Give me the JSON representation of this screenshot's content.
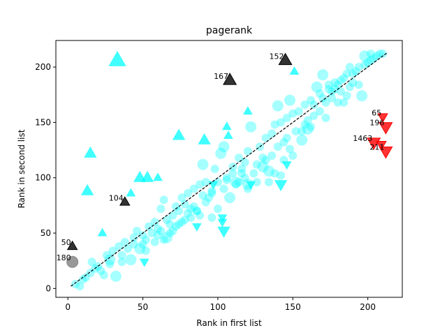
{
  "chart_data": {
    "type": "scatter",
    "title": "pagerank",
    "xlabel": "Rank in first list",
    "ylabel": "Rank in second list",
    "xlim": [
      -8,
      223
    ],
    "ylim": [
      -8,
      224
    ],
    "xticks": [
      0,
      50,
      100,
      150,
      200
    ],
    "yticks": [
      0,
      50,
      100,
      150,
      200
    ],
    "grid": false,
    "reference_line": {
      "from": [
        2,
        2
      ],
      "to": [
        213,
        213
      ],
      "style": "dashed",
      "color": "#000000"
    },
    "colors": {
      "similar": "#00ffff",
      "outlier_high": "#000000",
      "outlier_low": "#ff0000",
      "gray": "#808080"
    },
    "series": [
      {
        "marker": "circle",
        "color": "#00ffff",
        "points": [
          [
            5,
            4,
            1
          ],
          [
            8,
            2,
            1
          ],
          [
            10,
            8,
            1
          ],
          [
            12,
            10,
            1
          ],
          [
            15,
            14,
            1
          ],
          [
            18,
            18,
            1
          ],
          [
            20,
            20,
            1
          ],
          [
            22,
            16,
            1
          ],
          [
            24,
            12,
            1
          ],
          [
            16,
            24,
            1
          ],
          [
            26,
            30,
            1
          ],
          [
            28,
            26,
            2
          ],
          [
            30,
            34,
            1
          ],
          [
            32,
            11,
            2
          ],
          [
            34,
            38,
            1
          ],
          [
            36,
            30,
            1
          ],
          [
            38,
            42,
            1
          ],
          [
            40,
            36,
            1
          ],
          [
            42,
            26,
            2
          ],
          [
            44,
            46,
            1
          ],
          [
            46,
            52,
            1
          ],
          [
            48,
            36,
            2
          ],
          [
            50,
            48,
            1
          ],
          [
            52,
            44,
            1
          ],
          [
            54,
            56,
            1
          ],
          [
            56,
            50,
            1
          ],
          [
            58,
            60,
            1
          ],
          [
            60,
            54,
            1
          ],
          [
            62,
            72,
            1
          ],
          [
            64,
            80,
            1
          ],
          [
            66,
            62,
            1
          ],
          [
            68,
            58,
            1
          ],
          [
            70,
            66,
            1
          ],
          [
            72,
            74,
            1
          ],
          [
            74,
            70,
            1
          ],
          [
            76,
            82,
            1
          ],
          [
            78,
            76,
            1
          ],
          [
            80,
            86,
            1
          ],
          [
            82,
            64,
            1
          ],
          [
            84,
            90,
            1
          ],
          [
            86,
            70,
            1
          ],
          [
            88,
            94,
            1
          ],
          [
            90,
            112,
            2
          ],
          [
            92,
            78,
            1
          ],
          [
            94,
            82,
            1
          ],
          [
            96,
            86,
            1
          ],
          [
            98,
            108,
            1
          ],
          [
            100,
            96,
            1
          ],
          [
            102,
            122,
            2
          ],
          [
            104,
            128,
            2
          ],
          [
            106,
            100,
            1
          ],
          [
            108,
            82,
            2
          ],
          [
            110,
            104,
            1
          ],
          [
            112,
            96,
            2
          ],
          [
            114,
            118,
            1
          ],
          [
            116,
            108,
            1
          ],
          [
            118,
            114,
            1
          ],
          [
            120,
            124,
            1
          ],
          [
            122,
            146,
            2
          ],
          [
            124,
            104,
            1
          ],
          [
            126,
            112,
            1
          ],
          [
            128,
            128,
            1
          ],
          [
            130,
            110,
            2
          ],
          [
            132,
            136,
            1
          ],
          [
            134,
            106,
            2
          ],
          [
            136,
            140,
            1
          ],
          [
            138,
            148,
            1
          ],
          [
            140,
            165,
            2
          ],
          [
            142,
            150,
            1
          ],
          [
            144,
            132,
            1
          ],
          [
            146,
            154,
            1
          ],
          [
            148,
            170,
            2
          ],
          [
            150,
            158,
            1
          ],
          [
            152,
            142,
            1
          ],
          [
            154,
            160,
            1
          ],
          [
            156,
            134,
            2
          ],
          [
            158,
            166,
            1
          ],
          [
            160,
            144,
            2
          ],
          [
            162,
            170,
            1
          ],
          [
            164,
            156,
            1
          ],
          [
            166,
            182,
            2
          ],
          [
            168,
            176,
            1
          ],
          [
            170,
            193,
            2
          ],
          [
            172,
            168,
            1
          ],
          [
            174,
            180,
            1
          ],
          [
            176,
            172,
            1
          ],
          [
            178,
            186,
            1
          ],
          [
            180,
            168,
            1
          ],
          [
            182,
            178,
            1
          ],
          [
            184,
            190,
            1
          ],
          [
            186,
            174,
            1
          ],
          [
            188,
            182,
            1
          ],
          [
            190,
            186,
            1
          ],
          [
            192,
            196,
            1
          ],
          [
            194,
            200,
            1
          ],
          [
            196,
            174,
            2
          ],
          [
            198,
            210,
            2
          ],
          [
            200,
            204,
            1
          ],
          [
            202,
            206,
            1
          ],
          [
            204,
            208,
            1
          ],
          [
            206,
            210,
            1
          ],
          [
            208,
            212,
            1
          ],
          [
            210,
            212,
            1
          ],
          [
            66,
            46,
            2
          ],
          [
            64,
            44,
            1
          ],
          [
            96,
            88,
            1
          ],
          [
            92,
            96,
            1
          ],
          [
            86,
            70,
            1
          ],
          [
            88,
            66,
            1
          ],
          [
            100,
            72,
            1
          ],
          [
            104,
            90,
            1
          ],
          [
            96,
            64,
            1
          ],
          [
            80,
            68,
            1
          ],
          [
            78,
            62,
            1
          ],
          [
            74,
            58,
            1
          ],
          [
            52,
            34,
            1
          ],
          [
            50,
            40,
            1
          ],
          [
            44,
            40,
            1
          ],
          [
            36,
            24,
            1
          ],
          [
            28,
            22,
            1
          ],
          [
            118,
            100,
            1
          ],
          [
            120,
            94,
            2
          ],
          [
            126,
            96,
            1
          ],
          [
            130,
            118,
            1
          ],
          [
            134,
            96,
            1
          ],
          [
            138,
            104,
            1
          ],
          [
            140,
            128,
            1
          ],
          [
            144,
            116,
            1
          ],
          [
            146,
            136,
            1
          ],
          [
            150,
            120,
            1
          ],
          [
            158,
            148,
            1
          ],
          [
            160,
            152,
            1
          ],
          [
            162,
            146,
            1
          ],
          [
            168,
            160,
            1
          ],
          [
            172,
            154,
            1
          ],
          [
            176,
            178,
            1
          ],
          [
            180,
            184,
            1
          ],
          [
            184,
            168,
            1
          ],
          [
            186,
            194,
            1
          ],
          [
            188,
            200,
            1
          ],
          [
            112,
            94,
            1
          ],
          [
            114,
            96,
            1
          ],
          [
            116,
            104,
            1
          ],
          [
            106,
            98,
            1
          ],
          [
            110,
            110,
            1
          ],
          [
            120,
            90,
            1
          ],
          [
            132,
            116,
            1
          ],
          [
            136,
            120,
            1
          ],
          [
            142,
            102,
            1
          ],
          [
            148,
            126,
            1
          ],
          [
            156,
            142,
            1
          ],
          [
            164,
            166,
            1
          ],
          [
            170,
            172,
            1
          ],
          [
            174,
            184,
            1
          ],
          [
            178,
            180,
            1
          ],
          [
            182,
            188,
            1
          ],
          [
            190,
            194,
            1
          ],
          [
            194,
            184,
            1
          ],
          [
            198,
            202,
            1
          ],
          [
            202,
            212,
            1
          ],
          [
            58,
            42,
            1
          ],
          [
            60,
            48,
            1
          ],
          [
            62,
            52,
            1
          ],
          [
            68,
            50,
            1
          ],
          [
            70,
            52,
            1
          ],
          [
            72,
            56,
            1
          ],
          [
            76,
            60,
            1
          ],
          [
            82,
            72,
            1
          ],
          [
            84,
            74,
            1
          ],
          [
            90,
            84,
            1
          ]
        ]
      },
      {
        "marker": "triangle-up",
        "color": "#00ffff",
        "points": [
          [
            33,
            206,
            3
          ],
          [
            15,
            122,
            2
          ],
          [
            13,
            88,
            2
          ],
          [
            23,
            50,
            1
          ],
          [
            42,
            86,
            1
          ],
          [
            48,
            100,
            2
          ],
          [
            53,
            100,
            2
          ],
          [
            60,
            100,
            1
          ],
          [
            74,
            138,
            2
          ],
          [
            91,
            134,
            2
          ],
          [
            106,
            146,
            1
          ],
          [
            107,
            138,
            1
          ],
          [
            120,
            160,
            1
          ],
          [
            151,
            196,
            1
          ]
        ]
      },
      {
        "marker": "triangle-down",
        "color": "#00ffff",
        "points": [
          [
            51,
            24,
            1
          ],
          [
            86,
            56,
            1
          ],
          [
            97,
            94,
            1
          ],
          [
            103,
            64,
            1
          ],
          [
            103,
            60,
            1
          ],
          [
            104,
            52,
            2
          ],
          [
            122,
            94,
            1
          ],
          [
            142,
            94,
            2
          ],
          [
            146,
            112,
            1
          ]
        ]
      },
      {
        "marker": "triangle-up",
        "color": "#000000",
        "points": [
          [
            3,
            38,
            1,
            "50"
          ],
          [
            38,
            78,
            1,
            "104"
          ],
          [
            108,
            188,
            2,
            "167"
          ],
          [
            145,
            206,
            2,
            "152"
          ]
        ]
      },
      {
        "marker": "triangle-down",
        "color": "#ff0000",
        "points": [
          [
            210,
            155,
            1,
            "65"
          ],
          [
            212,
            146,
            2,
            "196"
          ],
          [
            204,
            132,
            2,
            "1463"
          ],
          [
            209,
            130,
            1,
            ""
          ],
          [
            212,
            124,
            2,
            "211"
          ]
        ]
      },
      {
        "marker": "circle",
        "color": "#808080",
        "points": [
          [
            3,
            24,
            2,
            "180"
          ]
        ]
      }
    ]
  }
}
